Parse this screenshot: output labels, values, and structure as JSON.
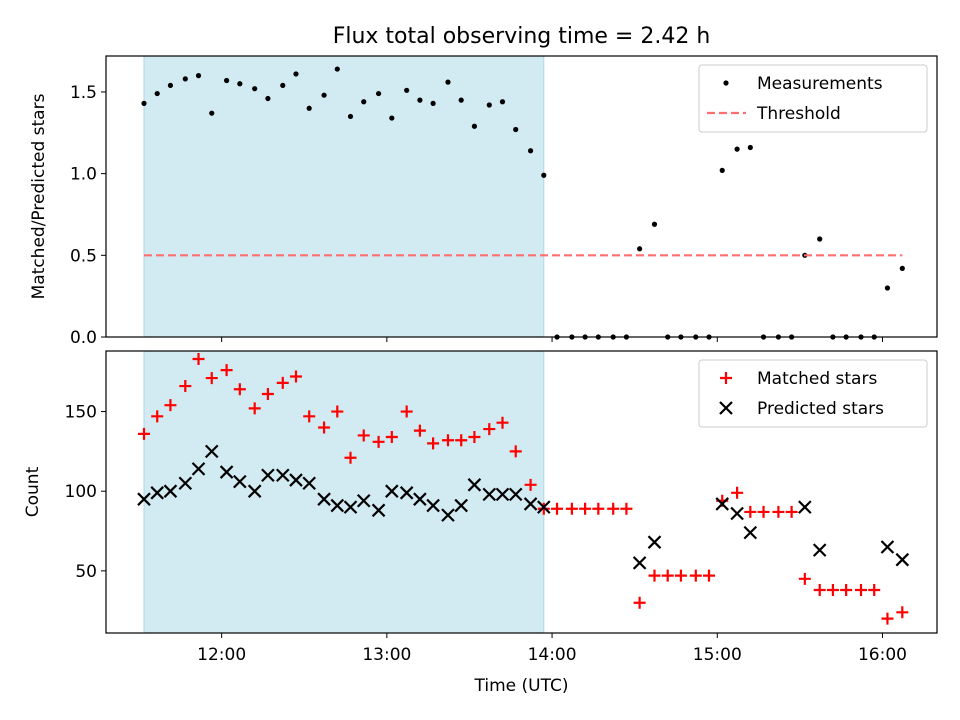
{
  "chart_data": {
    "title": "Flux total observing time = 2.42 h",
    "xlabel": "Time (UTC)",
    "x_ticks": [
      "12:00",
      "13:00",
      "14:00",
      "15:00",
      "16:00"
    ],
    "x_tick_hours": [
      12,
      13,
      14,
      15,
      16
    ],
    "x_range_hours": [
      11.3,
      16.33
    ],
    "shaded_interval_hours": [
      11.53,
      13.95
    ],
    "colors": {
      "shade": "#add8e6",
      "measurements": "#000000",
      "threshold": "#ff6f6f",
      "matched": "#ff0000",
      "predicted": "#000000"
    },
    "panels": [
      {
        "type": "scatter",
        "ylabel": "Matched/Predicted stars",
        "ylim": [
          0.0,
          1.72
        ],
        "y_ticks": [
          "0.0",
          "0.5",
          "1.0",
          "1.5"
        ],
        "y_tick_values": [
          0.0,
          0.5,
          1.0,
          1.5
        ],
        "legend_position": "top-right",
        "series": [
          {
            "name": "Measurements",
            "marker": "dot",
            "points": [
              [
                11.53,
                1.43
              ],
              [
                11.61,
                1.49
              ],
              [
                11.69,
                1.54
              ],
              [
                11.78,
                1.58
              ],
              [
                11.86,
                1.6
              ],
              [
                11.94,
                1.37
              ],
              [
                12.03,
                1.57
              ],
              [
                12.11,
                1.55
              ],
              [
                12.2,
                1.52
              ],
              [
                12.28,
                1.46
              ],
              [
                12.37,
                1.54
              ],
              [
                12.45,
                1.61
              ],
              [
                12.53,
                1.4
              ],
              [
                12.62,
                1.48
              ],
              [
                12.7,
                1.64
              ],
              [
                12.78,
                1.35
              ],
              [
                12.86,
                1.44
              ],
              [
                12.95,
                1.49
              ],
              [
                13.03,
                1.34
              ],
              [
                13.12,
                1.51
              ],
              [
                13.2,
                1.45
              ],
              [
                13.28,
                1.43
              ],
              [
                13.37,
                1.56
              ],
              [
                13.45,
                1.45
              ],
              [
                13.53,
                1.29
              ],
              [
                13.62,
                1.42
              ],
              [
                13.7,
                1.44
              ],
              [
                13.78,
                1.27
              ],
              [
                13.87,
                1.14
              ],
              [
                13.95,
                0.99
              ],
              [
                14.03,
                0.0
              ],
              [
                14.12,
                0.0
              ],
              [
                14.2,
                0.0
              ],
              [
                14.28,
                0.0
              ],
              [
                14.37,
                0.0
              ],
              [
                14.45,
                0.0
              ],
              [
                14.53,
                0.54
              ],
              [
                14.62,
                0.69
              ],
              [
                14.7,
                0.0
              ],
              [
                14.78,
                0.0
              ],
              [
                14.87,
                0.0
              ],
              [
                14.95,
                0.0
              ],
              [
                15.03,
                1.02
              ],
              [
                15.12,
                1.15
              ],
              [
                15.2,
                1.16
              ],
              [
                15.28,
                0.0
              ],
              [
                15.37,
                0.0
              ],
              [
                15.45,
                0.0
              ],
              [
                15.53,
                0.5
              ],
              [
                15.62,
                0.6
              ],
              [
                15.7,
                0.0
              ],
              [
                15.78,
                0.0
              ],
              [
                15.87,
                0.0
              ],
              [
                15.95,
                0.0
              ],
              [
                16.03,
                0.3
              ],
              [
                16.12,
                0.42
              ]
            ]
          },
          {
            "name": "Threshold",
            "style": "dashed",
            "points": [
              [
                11.53,
                0.5
              ],
              [
                16.12,
                0.5
              ]
            ]
          }
        ]
      },
      {
        "type": "scatter",
        "ylabel": "Count",
        "ylim": [
          11.0,
          188.0
        ],
        "y_ticks": [
          "50",
          "100",
          "150"
        ],
        "y_tick_values": [
          50,
          100,
          150
        ],
        "legend_position": "top-right",
        "series": [
          {
            "name": "Matched stars",
            "marker": "plus",
            "points": [
              [
                11.53,
                136
              ],
              [
                11.61,
                147
              ],
              [
                11.69,
                154
              ],
              [
                11.78,
                166
              ],
              [
                11.86,
                183
              ],
              [
                11.94,
                171
              ],
              [
                12.03,
                176
              ],
              [
                12.11,
                164
              ],
              [
                12.2,
                152
              ],
              [
                12.28,
                161
              ],
              [
                12.37,
                168
              ],
              [
                12.45,
                172
              ],
              [
                12.53,
                147
              ],
              [
                12.62,
                140
              ],
              [
                12.7,
                150
              ],
              [
                12.78,
                121
              ],
              [
                12.86,
                135
              ],
              [
                12.95,
                131
              ],
              [
                13.03,
                134
              ],
              [
                13.12,
                150
              ],
              [
                13.2,
                138
              ],
              [
                13.28,
                130
              ],
              [
                13.37,
                132
              ],
              [
                13.45,
                132
              ],
              [
                13.53,
                134
              ],
              [
                13.62,
                139
              ],
              [
                13.7,
                143
              ],
              [
                13.78,
                125
              ],
              [
                13.87,
                104
              ],
              [
                13.95,
                89
              ],
              [
                14.03,
                89
              ],
              [
                14.12,
                89
              ],
              [
                14.2,
                89
              ],
              [
                14.28,
                89
              ],
              [
                14.37,
                89
              ],
              [
                14.45,
                89
              ],
              [
                14.53,
                30
              ],
              [
                14.62,
                47
              ],
              [
                14.7,
                47
              ],
              [
                14.78,
                47
              ],
              [
                14.87,
                47
              ],
              [
                14.95,
                47
              ],
              [
                15.03,
                94
              ],
              [
                15.12,
                99
              ],
              [
                15.2,
                87
              ],
              [
                15.28,
                87
              ],
              [
                15.37,
                87
              ],
              [
                15.45,
                87
              ],
              [
                15.53,
                45
              ],
              [
                15.62,
                38
              ],
              [
                15.7,
                38
              ],
              [
                15.78,
                38
              ],
              [
                15.87,
                38
              ],
              [
                15.95,
                38
              ],
              [
                16.03,
                20
              ],
              [
                16.12,
                24
              ]
            ]
          },
          {
            "name": "Predicted stars",
            "marker": "x",
            "points": [
              [
                11.53,
                95
              ],
              [
                11.61,
                99
              ],
              [
                11.69,
                100
              ],
              [
                11.78,
                105
              ],
              [
                11.86,
                114
              ],
              [
                11.94,
                125
              ],
              [
                12.03,
                112
              ],
              [
                12.11,
                106
              ],
              [
                12.2,
                100
              ],
              [
                12.28,
                110
              ],
              [
                12.37,
                110
              ],
              [
                12.45,
                107
              ],
              [
                12.53,
                105
              ],
              [
                12.62,
                95
              ],
              [
                12.7,
                91
              ],
              [
                12.78,
                90
              ],
              [
                12.86,
                94
              ],
              [
                12.95,
                88
              ],
              [
                13.03,
                100
              ],
              [
                13.12,
                99
              ],
              [
                13.2,
                95
              ],
              [
                13.28,
                91
              ],
              [
                13.37,
                85
              ],
              [
                13.45,
                91
              ],
              [
                13.53,
                104
              ],
              [
                13.62,
                98
              ],
              [
                13.7,
                98
              ],
              [
                13.78,
                98
              ],
              [
                13.87,
                92
              ],
              [
                13.95,
                90
              ],
              [
                14.53,
                55
              ],
              [
                14.62,
                68
              ],
              [
                15.03,
                92
              ],
              [
                15.12,
                86
              ],
              [
                15.2,
                74
              ],
              [
                15.53,
                90
              ],
              [
                15.62,
                63
              ],
              [
                16.03,
                65
              ],
              [
                16.12,
                57
              ]
            ]
          }
        ]
      }
    ]
  }
}
